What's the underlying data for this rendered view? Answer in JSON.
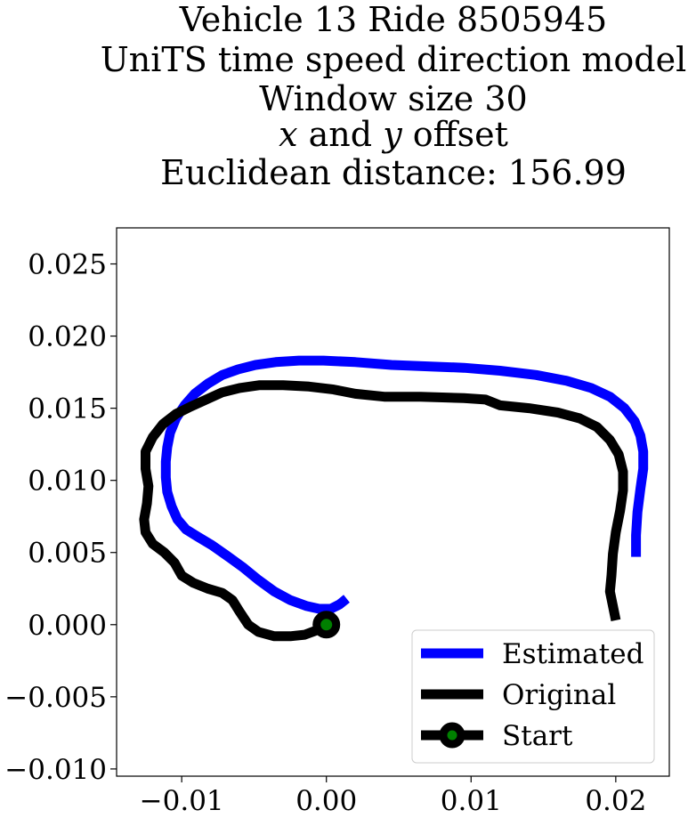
{
  "chart_data": {
    "type": "line",
    "title_lines": [
      "Vehicle 13 Ride 8505945",
      "UniTS time speed direction model",
      "Window size 30",
      "x and y offset",
      "Euclidean distance: 156.99"
    ],
    "xlabel": "",
    "ylabel": "",
    "xlim": [
      -0.0145,
      0.0237
    ],
    "ylim": [
      -0.0105,
      0.0275
    ],
    "x_ticks": [
      -0.01,
      0.0,
      0.01,
      0.02
    ],
    "x_tick_labels": [
      "−0.01",
      "0.00",
      "0.01",
      "0.02"
    ],
    "y_ticks": [
      -0.01,
      -0.005,
      0.0,
      0.005,
      0.01,
      0.015,
      0.02,
      0.025
    ],
    "y_tick_labels": [
      "−0.010",
      "−0.005",
      "0.000",
      "0.005",
      "0.010",
      "0.015",
      "0.020",
      "0.025"
    ],
    "grid": false,
    "legend_position": "lower right",
    "series": [
      {
        "name": "Estimated",
        "color": "#0000ff",
        "points": [
          [
            0.0014,
            0.0018
          ],
          [
            0.0009,
            0.0014
          ],
          [
            0.0003,
            0.0011
          ],
          [
            -0.0005,
            0.0011
          ],
          [
            -0.0014,
            0.0013
          ],
          [
            -0.0025,
            0.0017
          ],
          [
            -0.0036,
            0.0023
          ],
          [
            -0.0047,
            0.0031
          ],
          [
            -0.0058,
            0.004
          ],
          [
            -0.0069,
            0.0048
          ],
          [
            -0.0079,
            0.0055
          ],
          [
            -0.0089,
            0.0061
          ],
          [
            -0.0097,
            0.0066
          ],
          [
            -0.0103,
            0.0073
          ],
          [
            -0.0107,
            0.0082
          ],
          [
            -0.011,
            0.0092
          ],
          [
            -0.0111,
            0.0102
          ],
          [
            -0.0111,
            0.0113
          ],
          [
            -0.011,
            0.0123
          ],
          [
            -0.0108,
            0.0133
          ],
          [
            -0.0104,
            0.0143
          ],
          [
            -0.0098,
            0.0152
          ],
          [
            -0.0091,
            0.016
          ],
          [
            -0.0082,
            0.0167
          ],
          [
            -0.0072,
            0.0173
          ],
          [
            -0.0061,
            0.0177
          ],
          [
            -0.0049,
            0.018
          ],
          [
            -0.0035,
            0.0182
          ],
          [
            -0.0019,
            0.0183
          ],
          [
            -0.0002,
            0.0183
          ],
          [
            0.002,
            0.0182
          ],
          [
            0.0045,
            0.018
          ],
          [
            0.007,
            0.0179
          ],
          [
            0.0095,
            0.0178
          ],
          [
            0.012,
            0.0176
          ],
          [
            0.0145,
            0.0173
          ],
          [
            0.0166,
            0.0169
          ],
          [
            0.0183,
            0.0164
          ],
          [
            0.0196,
            0.0158
          ],
          [
            0.0206,
            0.015
          ],
          [
            0.0213,
            0.0141
          ],
          [
            0.0217,
            0.0131
          ],
          [
            0.0219,
            0.012
          ],
          [
            0.0219,
            0.0108
          ],
          [
            0.0217,
            0.0094
          ],
          [
            0.0215,
            0.0078
          ],
          [
            0.0214,
            0.0062
          ],
          [
            0.0214,
            0.0047
          ]
        ]
      },
      {
        "name": "Original",
        "color": "#000000",
        "points": [
          [
            0.0,
            0.0
          ],
          [
            -0.0007,
            -0.0004
          ],
          [
            -0.0015,
            -0.0007
          ],
          [
            -0.0025,
            -0.0008
          ],
          [
            -0.0036,
            -0.0008
          ],
          [
            -0.0047,
            -0.0005
          ],
          [
            -0.0054,
            0.0
          ],
          [
            -0.006,
            0.0009
          ],
          [
            -0.0065,
            0.0017
          ],
          [
            -0.0072,
            0.0022
          ],
          [
            -0.0082,
            0.0025
          ],
          [
            -0.0092,
            0.0029
          ],
          [
            -0.01,
            0.0034
          ],
          [
            -0.0105,
            0.0043
          ],
          [
            -0.0112,
            0.005
          ],
          [
            -0.012,
            0.0056
          ],
          [
            -0.0125,
            0.0064
          ],
          [
            -0.0126,
            0.0073
          ],
          [
            -0.0124,
            0.0084
          ],
          [
            -0.0123,
            0.0096
          ],
          [
            -0.0125,
            0.0108
          ],
          [
            -0.0125,
            0.012
          ],
          [
            -0.012,
            0.013
          ],
          [
            -0.0113,
            0.0139
          ],
          [
            -0.0104,
            0.0146
          ],
          [
            -0.0094,
            0.0151
          ],
          [
            -0.0083,
            0.0156
          ],
          [
            -0.0072,
            0.0161
          ],
          [
            -0.006,
            0.0164
          ],
          [
            -0.0046,
            0.0166
          ],
          [
            -0.003,
            0.0166
          ],
          [
            -0.0012,
            0.0165
          ],
          [
            0.0005,
            0.0163
          ],
          [
            0.002,
            0.016
          ],
          [
            0.004,
            0.0158
          ],
          [
            0.0065,
            0.0158
          ],
          [
            0.0095,
            0.0157
          ],
          [
            0.011,
            0.0156
          ],
          [
            0.012,
            0.0152
          ],
          [
            0.014,
            0.015
          ],
          [
            0.016,
            0.0147
          ],
          [
            0.0175,
            0.0143
          ],
          [
            0.0187,
            0.0137
          ],
          [
            0.0196,
            0.0128
          ],
          [
            0.0202,
            0.0118
          ],
          [
            0.0205,
            0.0106
          ],
          [
            0.0205,
            0.0093
          ],
          [
            0.0203,
            0.0079
          ],
          [
            0.02,
            0.0064
          ],
          [
            0.0198,
            0.0049
          ],
          [
            0.0197,
            0.0034
          ],
          [
            0.0196,
            0.0023
          ],
          [
            0.0198,
            0.0013
          ],
          [
            0.02,
            0.0003
          ]
        ]
      }
    ],
    "start_marker": {
      "name": "Start",
      "x": 0.0,
      "y": 0.0,
      "edge_color": "#000000",
      "face_color": "#008000"
    }
  }
}
